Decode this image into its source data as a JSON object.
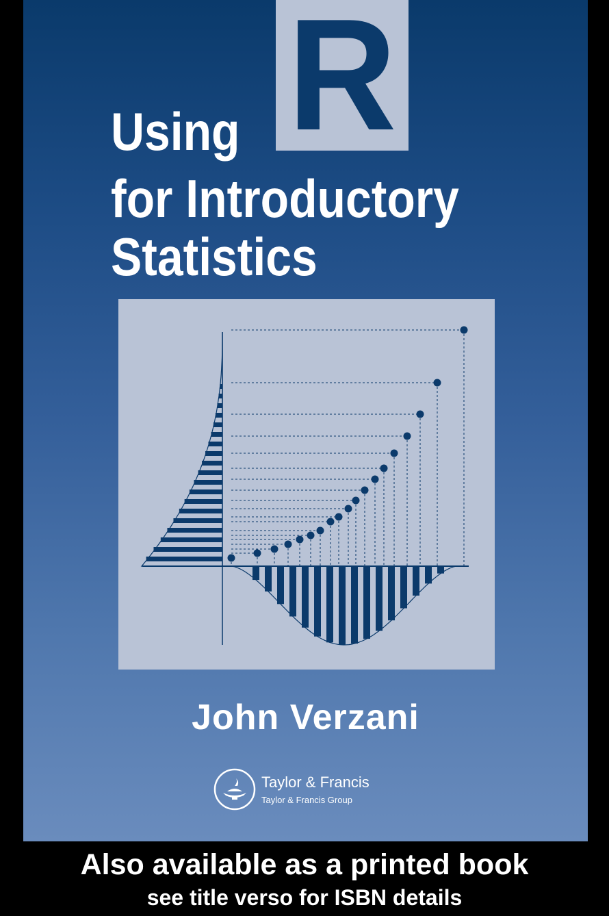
{
  "cover": {
    "title_lines": [
      "Using",
      "for Introductory",
      "Statistics"
    ],
    "title_highlight_letter": "R",
    "author": "John Verzani",
    "publisher": {
      "name": "Taylor & Francis",
      "group": "Taylor & Francis Group",
      "logo_icon": "lamp-icon"
    },
    "illustration_icon": "statistics-illustration"
  },
  "footer": {
    "line_1": "Also available as a printed book",
    "line_2": "see title verso for ISBN details"
  },
  "colors": {
    "background": "#000000",
    "cover_top": "#0a3a6b",
    "cover_bottom": "#6a8cbd",
    "panel": "#b9c3d6",
    "ink": "#0b3a6b",
    "text": "#ffffff"
  }
}
